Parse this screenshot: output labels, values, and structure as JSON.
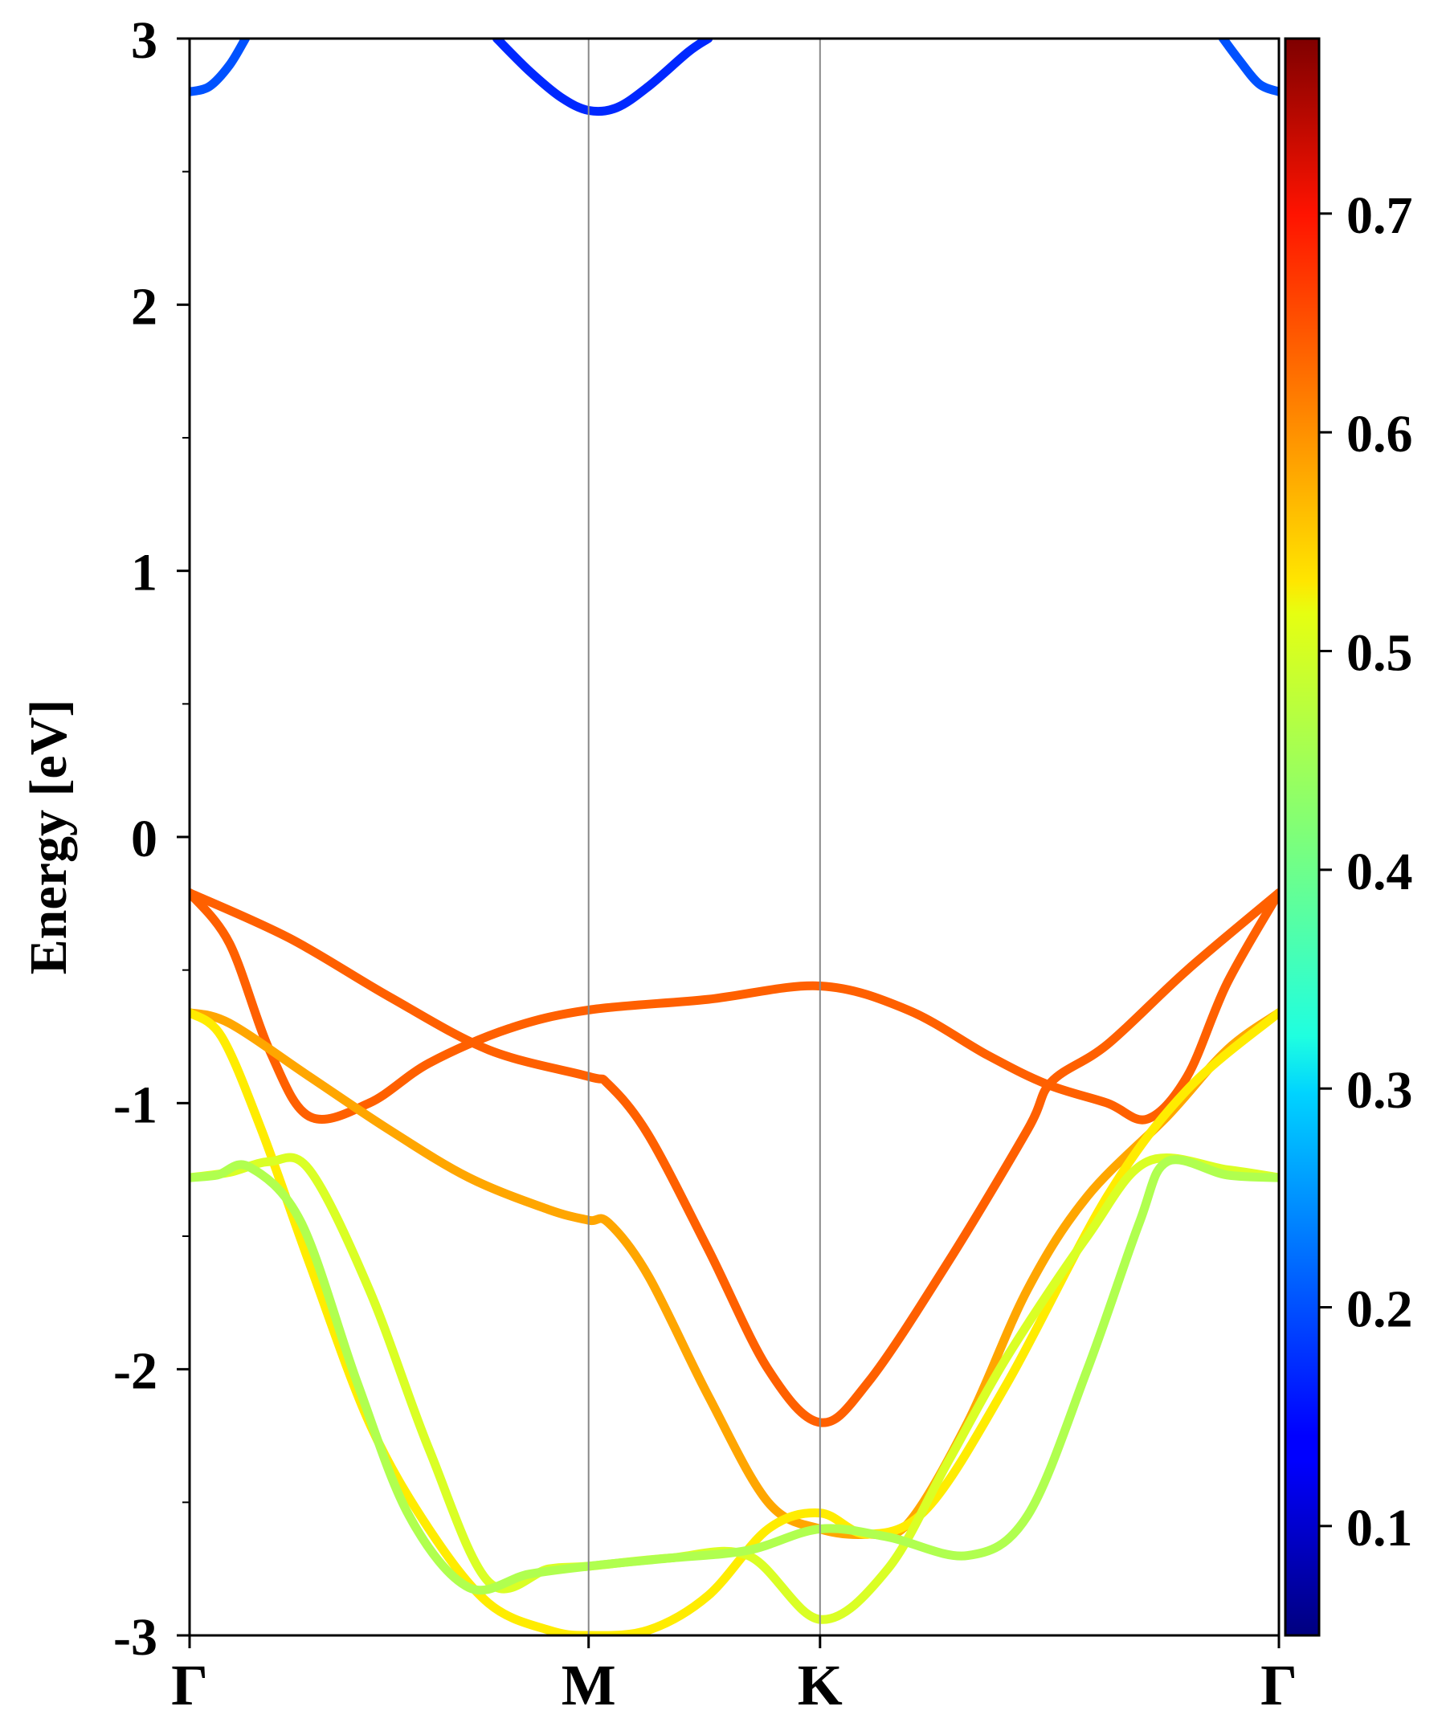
{
  "chart_data": {
    "type": "line",
    "title": "",
    "xlabel": "",
    "ylabel": "Energy [eV]",
    "ylim": [
      -3,
      3
    ],
    "y_ticks": [
      {
        "value": 3,
        "label": "3"
      },
      {
        "value": 2,
        "label": "2"
      },
      {
        "value": 1,
        "label": "1"
      },
      {
        "value": 0,
        "label": "0"
      },
      {
        "value": -1,
        "label": "-1"
      },
      {
        "value": -2,
        "label": "-2"
      },
      {
        "value": -3,
        "label": "-3"
      }
    ],
    "y_minor_ticks": [
      2.5,
      1.5,
      0.5,
      -0.5,
      -1.5,
      -2.5
    ],
    "k_path": [
      {
        "label": "Γ",
        "k": 0.0
      },
      {
        "label": "M",
        "k": 1.0
      },
      {
        "label": "K",
        "k": 1.58
      },
      {
        "label": "Γ",
        "k": 2.73
      }
    ],
    "colorbar": {
      "colormap": "jet",
      "range": [
        0.05,
        0.78
      ],
      "ticks": [
        {
          "value": 0.1,
          "label": "0.1"
        },
        {
          "value": 0.2,
          "label": "0.2"
        },
        {
          "value": 0.3,
          "label": "0.3"
        },
        {
          "value": 0.4,
          "label": "0.4"
        },
        {
          "value": 0.5,
          "label": "0.5"
        },
        {
          "value": 0.6,
          "label": "0.6"
        },
        {
          "value": 0.7,
          "label": "0.7"
        }
      ]
    },
    "series": [
      {
        "color_value": 0.62,
        "points": [
          [
            0,
            -0.21
          ],
          [
            0.25,
            -0.38
          ],
          [
            0.5,
            -0.6
          ],
          [
            0.75,
            -0.8
          ],
          [
            1.0,
            -0.9
          ],
          [
            1.05,
            -0.93
          ],
          [
            1.15,
            -1.12
          ],
          [
            1.3,
            -1.55
          ],
          [
            1.45,
            -2.0
          ],
          [
            1.58,
            -2.2
          ],
          [
            1.7,
            -2.05
          ],
          [
            1.9,
            -1.6
          ],
          [
            2.1,
            -1.1
          ],
          [
            2.16,
            -0.92
          ],
          [
            2.3,
            -0.78
          ],
          [
            2.5,
            -0.5
          ],
          [
            2.73,
            -0.21
          ]
        ]
      },
      {
        "color_value": 0.62,
        "points": [
          [
            0,
            -0.21
          ],
          [
            0.1,
            -0.4
          ],
          [
            0.2,
            -0.8
          ],
          [
            0.3,
            -1.05
          ],
          [
            0.45,
            -1.0
          ],
          [
            0.6,
            -0.85
          ],
          [
            0.8,
            -0.72
          ],
          [
            1.0,
            -0.65
          ],
          [
            1.3,
            -0.61
          ],
          [
            1.58,
            -0.56
          ],
          [
            1.8,
            -0.65
          ],
          [
            2.0,
            -0.82
          ],
          [
            2.15,
            -0.93
          ],
          [
            2.3,
            -1.0
          ],
          [
            2.4,
            -1.06
          ],
          [
            2.5,
            -0.9
          ],
          [
            2.6,
            -0.55
          ],
          [
            2.73,
            -0.21
          ]
        ]
      },
      {
        "color_value": 0.57,
        "points": [
          [
            0,
            -0.66
          ],
          [
            0.1,
            -0.7
          ],
          [
            0.3,
            -0.9
          ],
          [
            0.5,
            -1.1
          ],
          [
            0.7,
            -1.28
          ],
          [
            0.9,
            -1.4
          ],
          [
            1.0,
            -1.44
          ],
          [
            1.05,
            -1.45
          ],
          [
            1.15,
            -1.65
          ],
          [
            1.3,
            -2.1
          ],
          [
            1.45,
            -2.5
          ],
          [
            1.58,
            -2.6
          ],
          [
            1.7,
            -2.62
          ],
          [
            1.8,
            -2.58
          ],
          [
            1.95,
            -2.2
          ],
          [
            2.1,
            -1.7
          ],
          [
            2.25,
            -1.35
          ],
          [
            2.45,
            -1.05
          ],
          [
            2.6,
            -0.8
          ],
          [
            2.73,
            -0.66
          ]
        ]
      },
      {
        "color_value": 0.52,
        "points": [
          [
            0,
            -0.66
          ],
          [
            0.08,
            -0.75
          ],
          [
            0.18,
            -1.1
          ],
          [
            0.3,
            -1.6
          ],
          [
            0.45,
            -2.2
          ],
          [
            0.6,
            -2.6
          ],
          [
            0.75,
            -2.88
          ],
          [
            0.9,
            -2.98
          ],
          [
            1.0,
            -3.0
          ],
          [
            1.15,
            -2.98
          ],
          [
            1.3,
            -2.85
          ],
          [
            1.45,
            -2.6
          ],
          [
            1.58,
            -2.54
          ],
          [
            1.7,
            -2.62
          ],
          [
            1.85,
            -2.52
          ],
          [
            2.05,
            -2.05
          ],
          [
            2.3,
            -1.35
          ],
          [
            2.5,
            -0.95
          ],
          [
            2.73,
            -0.66
          ]
        ]
      },
      {
        "color_value": 0.48,
        "points": [
          [
            0,
            -1.28
          ],
          [
            0.1,
            -1.26
          ],
          [
            0.2,
            -1.22
          ],
          [
            0.3,
            -1.25
          ],
          [
            0.45,
            -1.7
          ],
          [
            0.6,
            -2.3
          ],
          [
            0.75,
            -2.8
          ],
          [
            0.9,
            -2.75
          ],
          [
            1.0,
            -2.74
          ],
          [
            1.2,
            -2.71
          ],
          [
            1.4,
            -2.7
          ],
          [
            1.58,
            -2.94
          ],
          [
            1.75,
            -2.75
          ],
          [
            1.9,
            -2.35
          ],
          [
            2.05,
            -1.95
          ],
          [
            2.25,
            -1.5
          ],
          [
            2.4,
            -1.22
          ],
          [
            2.6,
            -1.25
          ],
          [
            2.73,
            -1.28
          ]
        ]
      },
      {
        "color_value": 0.45,
        "points": [
          [
            0,
            -1.28
          ],
          [
            0.07,
            -1.27
          ],
          [
            0.15,
            -1.24
          ],
          [
            0.28,
            -1.45
          ],
          [
            0.42,
            -2.05
          ],
          [
            0.55,
            -2.55
          ],
          [
            0.7,
            -2.82
          ],
          [
            0.85,
            -2.77
          ],
          [
            1.0,
            -2.74
          ],
          [
            1.2,
            -2.71
          ],
          [
            1.4,
            -2.68
          ],
          [
            1.58,
            -2.6
          ],
          [
            1.75,
            -2.63
          ],
          [
            1.95,
            -2.7
          ],
          [
            2.1,
            -2.55
          ],
          [
            2.25,
            -2.0
          ],
          [
            2.38,
            -1.45
          ],
          [
            2.45,
            -1.22
          ],
          [
            2.6,
            -1.27
          ],
          [
            2.73,
            -1.28
          ]
        ]
      },
      {
        "color_value": 0.2,
        "points": [
          [
            0.0,
            2.8
          ],
          [
            0.05,
            2.82
          ],
          [
            0.1,
            2.9
          ],
          [
            0.14,
            3.0
          ]
        ]
      },
      {
        "color_value": 0.17,
        "points": [
          [
            0.77,
            3.0
          ],
          [
            0.85,
            2.88
          ],
          [
            0.93,
            2.78
          ],
          [
            1.0,
            2.73
          ],
          [
            1.07,
            2.74
          ],
          [
            1.15,
            2.82
          ],
          [
            1.25,
            2.95
          ],
          [
            1.3,
            3.0
          ]
        ]
      },
      {
        "color_value": 0.2,
        "points": [
          [
            2.59,
            3.0
          ],
          [
            2.63,
            2.92
          ],
          [
            2.68,
            2.83
          ],
          [
            2.73,
            2.8
          ]
        ]
      }
    ]
  }
}
